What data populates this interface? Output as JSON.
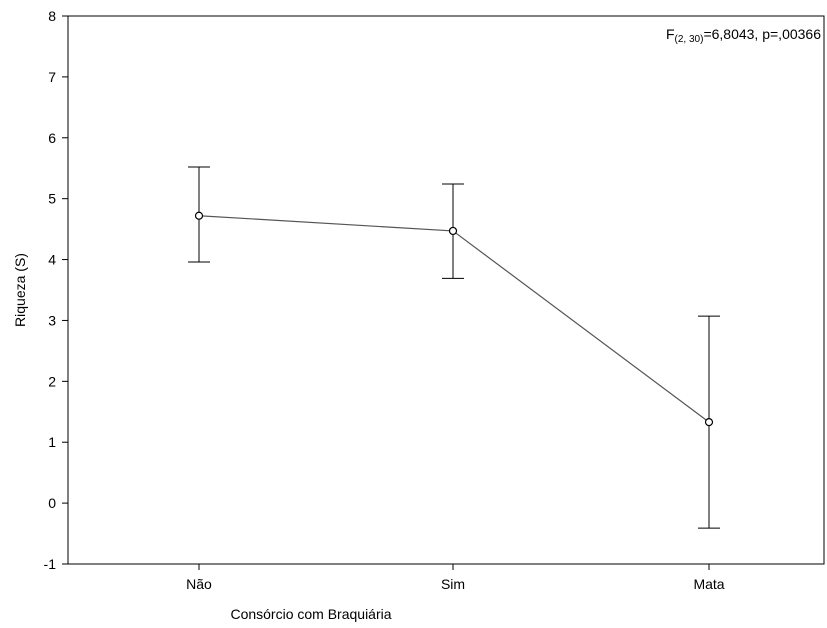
{
  "chart_data": {
    "type": "line",
    "xlabel": "Consórcio com Braquiária",
    "ylabel": "Riqueza (S)",
    "categories": [
      "Não",
      "Sim",
      "Mata"
    ],
    "ylim": [
      -1,
      8
    ],
    "yticks": [
      "-1",
      "0",
      "1",
      "2",
      "3",
      "4",
      "5",
      "6",
      "7",
      "8"
    ],
    "grid": false,
    "series": [
      {
        "mean": [
          4.72,
          4.47,
          1.33
        ],
        "lower": [
          3.96,
          3.69,
          -0.41
        ],
        "upper": [
          5.52,
          5.24,
          3.07
        ]
      }
    ],
    "annotation": {
      "prefix": "F",
      "subscript": "(2, 30)",
      "suffix": "=6,8043, p=,00366"
    },
    "colors": {
      "line": "#555555",
      "marker_fill": "#ffffff",
      "marker_stroke": "#000000",
      "axis": "#000000"
    }
  }
}
